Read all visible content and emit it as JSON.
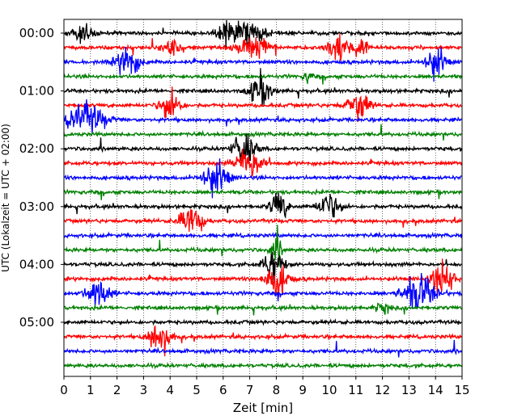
{
  "chart_data": {
    "type": "line",
    "title": "",
    "xlabel": "Zeit  [min]",
    "ylabel": "UTC (Lokalzeit = UTC + 02:00)",
    "xlim": [
      0,
      15
    ],
    "x_ticks": [
      "0",
      "1",
      "2",
      "3",
      "4",
      "5",
      "6",
      "7",
      "8",
      "9",
      "10",
      "11",
      "12",
      "13",
      "14",
      "15"
    ],
    "y_ticks": [
      "00:00",
      "01:00",
      "02:00",
      "03:00",
      "04:00",
      "05:00"
    ],
    "grid": "vertical dotted",
    "trace_interval_minutes": 15,
    "trace_count": 24,
    "trace_colors": [
      "#000000",
      "#ff0000",
      "#0000ff",
      "#008000"
    ],
    "events": [
      {
        "trace": 0,
        "minute": 0.7,
        "amplitude": 0.8,
        "duration": 0.8
      },
      {
        "trace": 0,
        "minute": 6.1,
        "amplitude": 1.0,
        "duration": 0.7
      },
      {
        "trace": 0,
        "minute": 7.0,
        "amplitude": 1.2,
        "duration": 1.1
      },
      {
        "trace": 1,
        "minute": 4.1,
        "amplitude": 1.3,
        "duration": 0.6
      },
      {
        "trace": 1,
        "minute": 7.2,
        "amplitude": 1.1,
        "duration": 1.2
      },
      {
        "trace": 1,
        "minute": 10.3,
        "amplitude": 1.3,
        "duration": 0.8
      },
      {
        "trace": 1,
        "minute": 11.2,
        "amplitude": 0.9,
        "duration": 0.6
      },
      {
        "trace": 2,
        "minute": 2.4,
        "amplitude": 1.5,
        "duration": 0.8
      },
      {
        "trace": 2,
        "minute": 14.0,
        "amplitude": 1.5,
        "duration": 0.7
      },
      {
        "trace": 3,
        "minute": 9.2,
        "amplitude": 0.6,
        "duration": 0.3
      },
      {
        "trace": 4,
        "minute": 7.4,
        "amplitude": 1.4,
        "duration": 0.8
      },
      {
        "trace": 5,
        "minute": 4.0,
        "amplitude": 1.6,
        "duration": 0.7
      },
      {
        "trace": 5,
        "minute": 11.1,
        "amplitude": 1.4,
        "duration": 0.8
      },
      {
        "trace": 6,
        "minute": 0.8,
        "amplitude": 1.5,
        "duration": 1.4
      },
      {
        "trace": 8,
        "minute": 6.8,
        "amplitude": 1.5,
        "duration": 0.8
      },
      {
        "trace": 9,
        "minute": 7.0,
        "amplitude": 1.5,
        "duration": 1.0
      },
      {
        "trace": 10,
        "minute": 5.7,
        "amplitude": 1.6,
        "duration": 0.9
      },
      {
        "trace": 12,
        "minute": 8.1,
        "amplitude": 1.5,
        "duration": 0.6
      },
      {
        "trace": 12,
        "minute": 10.0,
        "amplitude": 1.3,
        "duration": 0.8
      },
      {
        "trace": 13,
        "minute": 4.8,
        "amplitude": 1.6,
        "duration": 0.8
      },
      {
        "trace": 15,
        "minute": 8.0,
        "amplitude": 1.4,
        "duration": 0.4
      },
      {
        "trace": 16,
        "minute": 7.9,
        "amplitude": 1.6,
        "duration": 0.7
      },
      {
        "trace": 17,
        "minute": 8.0,
        "amplitude": 1.5,
        "duration": 0.9
      },
      {
        "trace": 17,
        "minute": 14.3,
        "amplitude": 1.7,
        "duration": 0.8
      },
      {
        "trace": 18,
        "minute": 1.3,
        "amplitude": 1.5,
        "duration": 0.8
      },
      {
        "trace": 18,
        "minute": 13.4,
        "amplitude": 1.6,
        "duration": 1.2
      },
      {
        "trace": 19,
        "minute": 12.0,
        "amplitude": 0.6,
        "duration": 0.5
      },
      {
        "trace": 21,
        "minute": 3.6,
        "amplitude": 1.6,
        "duration": 0.8
      }
    ]
  }
}
